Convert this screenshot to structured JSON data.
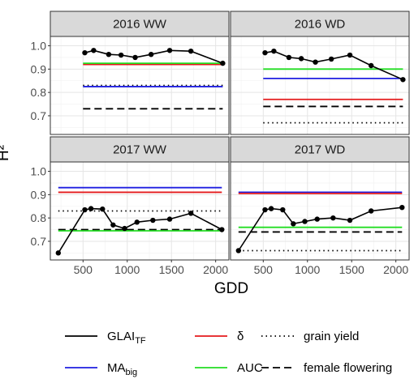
{
  "chart_data": {
    "type": "line",
    "xlabel": "GDD",
    "ylabel": "H²",
    "xlim": [
      130,
      2150
    ],
    "ylim": [
      0.62,
      1.04
    ],
    "x_ticks": [
      500,
      1000,
      1500,
      2000
    ],
    "x_tick_labels": [
      "500",
      "1000",
      "1500",
      "2000"
    ],
    "y_ticks": [
      0.7,
      0.8,
      0.9,
      1.0
    ],
    "y_tick_labels": [
      "0.7",
      "0.8",
      "0.9",
      "1.0"
    ],
    "grid": true,
    "legend_position": "bottom",
    "panels": [
      {
        "title": "2016 WW",
        "glai": {
          "x": [
            520,
            620,
            790,
            930,
            1090,
            1270,
            1480,
            1720,
            2080
          ],
          "y": [
            0.97,
            0.98,
            0.963,
            0.96,
            0.95,
            0.963,
            0.98,
            0.977,
            0.925
          ]
        },
        "refs": {
          "delta": {
            "y": 0.92,
            "x": [
              500,
              2080
            ]
          },
          "mabig": {
            "y": 0.825,
            "x": [
              500,
              2080
            ]
          },
          "auc": {
            "y": 0.925,
            "x": [
              500,
              2080
            ]
          },
          "grain_yield": {
            "y": 0.83,
            "x": [
              500,
              2080
            ]
          },
          "female_flowering": {
            "y": 0.73,
            "x": [
              500,
              2080
            ]
          }
        }
      },
      {
        "title": "2016 WD",
        "glai": {
          "x": [
            520,
            620,
            790,
            930,
            1090,
            1270,
            1480,
            1720,
            2080
          ],
          "y": [
            0.97,
            0.977,
            0.95,
            0.945,
            0.93,
            0.943,
            0.96,
            0.915,
            0.855
          ]
        },
        "refs": {
          "delta": {
            "y": 0.77,
            "x": [
              500,
              2080
            ]
          },
          "mabig": {
            "y": 0.86,
            "x": [
              500,
              2080
            ]
          },
          "auc": {
            "y": 0.9,
            "x": [
              500,
              2080
            ]
          },
          "grain_yield": {
            "y": 0.67,
            "x": [
              500,
              2080
            ]
          },
          "female_flowering": {
            "y": 0.74,
            "x": [
              500,
              2080
            ]
          }
        }
      },
      {
        "title": "2017 WW",
        "glai": {
          "x": [
            220,
            520,
            590,
            720,
            840,
            970,
            1110,
            1290,
            1480,
            1720,
            2070
          ],
          "y": [
            0.65,
            0.835,
            0.84,
            0.838,
            0.77,
            0.755,
            0.782,
            0.79,
            0.795,
            0.82,
            0.75
          ]
        },
        "refs": {
          "delta": {
            "y": 0.91,
            "x": [
              220,
              2070
            ]
          },
          "mabig": {
            "y": 0.93,
            "x": [
              220,
              2070
            ]
          },
          "auc": {
            "y": 0.745,
            "x": [
              220,
              2070
            ]
          },
          "grain_yield": {
            "y": 0.83,
            "x": [
              220,
              2070
            ]
          },
          "female_flowering": {
            "y": 0.75,
            "x": [
              220,
              2070
            ]
          }
        }
      },
      {
        "title": "2017 WD",
        "glai": {
          "x": [
            220,
            520,
            590,
            720,
            840,
            970,
            1110,
            1290,
            1480,
            1720,
            2070
          ],
          "y": [
            0.66,
            0.835,
            0.84,
            0.835,
            0.775,
            0.785,
            0.795,
            0.8,
            0.79,
            0.83,
            0.845
          ]
        },
        "refs": {
          "delta": {
            "y": 0.905,
            "x": [
              220,
              2070
            ]
          },
          "mabig": {
            "y": 0.91,
            "x": [
              220,
              2070
            ]
          },
          "auc": {
            "y": 0.76,
            "x": [
              220,
              2070
            ]
          },
          "grain_yield": {
            "y": 0.66,
            "x": [
              220,
              2070
            ]
          },
          "female_flowering": {
            "y": 0.74,
            "x": [
              220,
              2070
            ]
          }
        }
      }
    ],
    "legend": [
      {
        "key": "glai",
        "label": "GLAI",
        "sub": "TF",
        "color": "#000000",
        "dash": "solid"
      },
      {
        "key": "delta",
        "label": "δ",
        "sub": "",
        "color": "#e41a1c",
        "dash": "solid"
      },
      {
        "key": "grain_yield",
        "label": "grain yield",
        "sub": "",
        "color": "#000000",
        "dash": "dotted"
      },
      {
        "key": "mabig",
        "label": "MA",
        "sub": "big",
        "color": "#1f1fe0",
        "dash": "solid"
      },
      {
        "key": "auc",
        "label": "AUC",
        "sub": "",
        "color": "#22dd22",
        "dash": "solid"
      },
      {
        "key": "female_flowering",
        "label": "female flowering",
        "sub": "",
        "color": "#000000",
        "dash": "dashed"
      }
    ]
  }
}
